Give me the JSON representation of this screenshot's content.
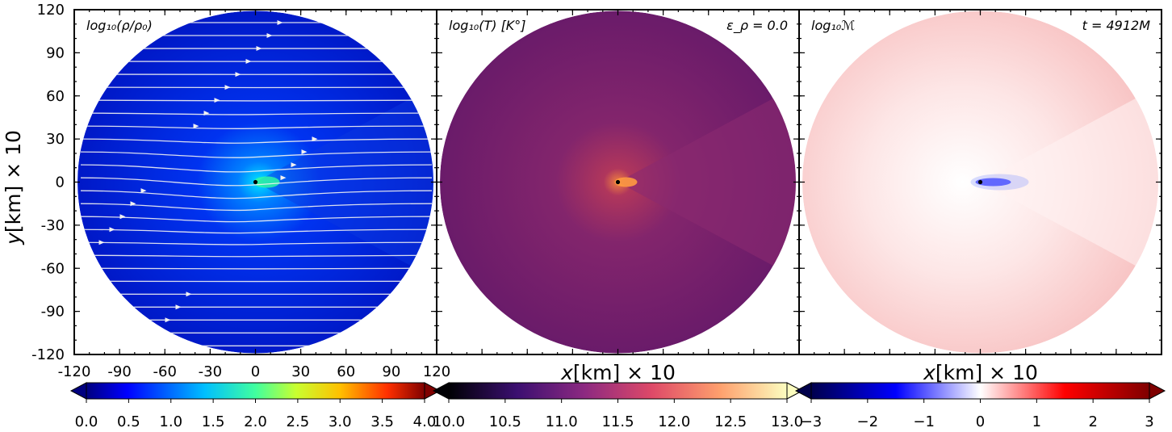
{
  "figure": {
    "ylabel_prefix": "y",
    "xlabel_prefix": "x",
    "axis_unit": "[km] × 10"
  },
  "chart_data": [
    {
      "type": "heatmap",
      "panel_label": "log₁₀(ρ/ρ₀)",
      "right_label": "",
      "colormap": "jet",
      "colors": [
        "#00007f",
        "#0000ff",
        "#00bfff",
        "#30ff9f",
        "#c8ff30",
        "#ffc000",
        "#ff3000",
        "#7f0000"
      ],
      "background_color": "#0019c8",
      "stream_color": "#f2f2f2",
      "xlim": [
        -120,
        120
      ],
      "ylim": [
        -120,
        120
      ],
      "xticks": [
        "-120",
        "-90",
        "-60",
        "-30",
        "0",
        "30",
        "60",
        "90",
        "120"
      ],
      "yticks": [
        "120",
        "90",
        "60",
        "30",
        "0",
        "-30",
        "-60",
        "-90",
        "-120"
      ],
      "colorbar": {
        "range": [
          0.0,
          4.0
        ],
        "ticks": [
          "0.0",
          "0.5",
          "1.0",
          "1.5",
          "2.0",
          "2.5",
          "3.0",
          "3.5",
          "4.0"
        ]
      },
      "streamlines": true
    },
    {
      "type": "heatmap",
      "panel_label": "log₁₀(T) [K°]",
      "right_label": "ε_ρ = 0.0",
      "colormap": "inferno",
      "colors": [
        "#000004",
        "#3b0f70",
        "#8c2981",
        "#de4968",
        "#fe9f6d",
        "#fcfdbf"
      ],
      "background_color": "#6e1d6b",
      "cone_color": "#8a2a70",
      "xlim": [
        -120,
        120
      ],
      "ylim": [
        -120,
        120
      ],
      "colorbar": {
        "range": [
          10.0,
          13.0
        ],
        "ticks": [
          "10.0",
          "10.5",
          "11.0",
          "11.5",
          "12.0",
          "12.5",
          "13.0"
        ]
      },
      "streamlines": false
    },
    {
      "type": "heatmap",
      "panel_label": "log₁₀ℳ",
      "right_label": "t = 4912M",
      "colormap": "seismic",
      "colors": [
        "#00004c",
        "#0000ff",
        "#ffffff",
        "#ff0000",
        "#7f0000"
      ],
      "background_color": "#fbd7d7",
      "cone_color": "#fff2f2",
      "xlim": [
        -120,
        120
      ],
      "ylim": [
        -120,
        120
      ],
      "colorbar": {
        "range": [
          -3,
          3
        ],
        "ticks": [
          "−3",
          "−2",
          "−1",
          "0",
          "1",
          "2",
          "3"
        ]
      },
      "streamlines": false
    }
  ]
}
